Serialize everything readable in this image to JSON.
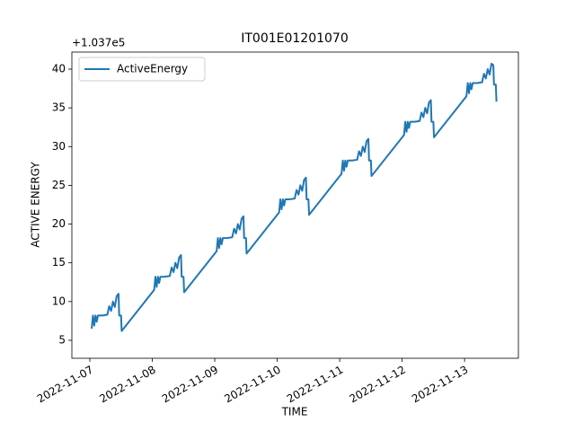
{
  "chart_data": {
    "type": "line",
    "title": "IT001E01201070",
    "offset_text": "+1.037e5",
    "x_label": "TIME",
    "y_label": "ACTIVE ENERGY",
    "legend": "upper left",
    "grid": false,
    "xlim": [
      "2022-11-06T17:06",
      "2022-11-13T20:40"
    ],
    "xticks": [
      "2022-11-07",
      "2022-11-08",
      "2022-11-09",
      "2022-11-10",
      "2022-11-11",
      "2022-11-12",
      "2022-11-13"
    ],
    "ylim": [
      2.68,
      42.2
    ],
    "yticks": [
      5,
      10,
      15,
      20,
      25,
      30,
      35,
      40
    ],
    "x": [
      "2022-11-07T00:43",
      "2022-11-07T01:12",
      "2022-11-07T01:41",
      "2022-11-07T02:10",
      "2022-11-07T02:38",
      "2022-11-07T03:07",
      "2022-11-07T04:48",
      "2022-11-07T06:43",
      "2022-11-07T07:26",
      "2022-11-07T08:10",
      "2022-11-07T08:53",
      "2022-11-07T09:36",
      "2022-11-07T10:19",
      "2022-11-07T11:02",
      "2022-11-07T11:17",
      "2022-11-07T12:00",
      "2022-11-07T12:14",
      "2022-11-08T00:43",
      "2022-11-08T01:12",
      "2022-11-08T01:41",
      "2022-11-08T02:10",
      "2022-11-08T02:38",
      "2022-11-08T03:07",
      "2022-11-08T04:48",
      "2022-11-08T06:43",
      "2022-11-08T07:26",
      "2022-11-08T08:10",
      "2022-11-08T08:53",
      "2022-11-08T09:36",
      "2022-11-08T10:19",
      "2022-11-08T11:02",
      "2022-11-08T11:17",
      "2022-11-08T12:00",
      "2022-11-08T12:14",
      "2022-11-09T00:43",
      "2022-11-09T01:12",
      "2022-11-09T01:41",
      "2022-11-09T02:10",
      "2022-11-09T02:38",
      "2022-11-09T03:07",
      "2022-11-09T04:48",
      "2022-11-09T06:43",
      "2022-11-09T07:26",
      "2022-11-09T08:10",
      "2022-11-09T08:53",
      "2022-11-09T09:36",
      "2022-11-09T10:19",
      "2022-11-09T11:02",
      "2022-11-09T11:17",
      "2022-11-09T12:00",
      "2022-11-09T12:14",
      "2022-11-10T00:43",
      "2022-11-10T01:12",
      "2022-11-10T01:41",
      "2022-11-10T02:10",
      "2022-11-10T02:38",
      "2022-11-10T03:07",
      "2022-11-10T04:48",
      "2022-11-10T06:43",
      "2022-11-10T07:26",
      "2022-11-10T08:10",
      "2022-11-10T08:53",
      "2022-11-10T09:36",
      "2022-11-10T10:19",
      "2022-11-10T11:02",
      "2022-11-10T11:17",
      "2022-11-10T12:00",
      "2022-11-10T12:14",
      "2022-11-11T00:43",
      "2022-11-11T01:12",
      "2022-11-11T01:41",
      "2022-11-11T02:10",
      "2022-11-11T02:38",
      "2022-11-11T03:07",
      "2022-11-11T04:48",
      "2022-11-11T06:43",
      "2022-11-11T07:26",
      "2022-11-11T08:10",
      "2022-11-11T08:53",
      "2022-11-11T09:36",
      "2022-11-11T10:19",
      "2022-11-11T11:02",
      "2022-11-11T11:17",
      "2022-11-11T12:00",
      "2022-11-11T12:14",
      "2022-11-12T00:43",
      "2022-11-12T01:12",
      "2022-11-12T01:41",
      "2022-11-12T02:10",
      "2022-11-12T02:38",
      "2022-11-12T03:07",
      "2022-11-12T04:48",
      "2022-11-12T06:43",
      "2022-11-12T07:26",
      "2022-11-12T08:10",
      "2022-11-12T08:53",
      "2022-11-12T09:36",
      "2022-11-12T10:19",
      "2022-11-12T11:02",
      "2022-11-12T11:17",
      "2022-11-12T12:00",
      "2022-11-12T12:14",
      "2022-11-13T00:43",
      "2022-11-13T01:12",
      "2022-11-13T01:41",
      "2022-11-13T02:10",
      "2022-11-13T02:38",
      "2022-11-13T03:07",
      "2022-11-13T04:48",
      "2022-11-13T06:43",
      "2022-11-13T07:26",
      "2022-11-13T08:10",
      "2022-11-13T08:53",
      "2022-11-13T09:36",
      "2022-11-13T10:19",
      "2022-11-13T11:02",
      "2022-11-13T11:17",
      "2022-11-13T12:00",
      "2022-11-13T12:14"
    ],
    "series": [
      {
        "name": "ActiveEnergy",
        "color": "#1f77b4",
        "values": [
          6.5,
          8.2,
          6.9,
          8.2,
          7.4,
          8.2,
          8.2,
          8.3,
          9.4,
          8.8,
          10.0,
          9.3,
          10.7,
          11.0,
          8.2,
          8.2,
          6.2,
          11.5,
          13.2,
          11.9,
          13.2,
          12.4,
          13.2,
          13.2,
          13.3,
          14.4,
          13.8,
          15.0,
          14.3,
          15.7,
          16.0,
          13.2,
          13.2,
          11.2,
          16.5,
          18.2,
          16.9,
          18.2,
          17.4,
          18.2,
          18.2,
          18.3,
          19.4,
          18.8,
          20.0,
          19.3,
          20.7,
          21.0,
          18.2,
          18.2,
          16.2,
          21.5,
          23.2,
          21.9,
          23.2,
          22.4,
          23.2,
          23.2,
          23.3,
          24.4,
          23.8,
          25.0,
          24.3,
          25.7,
          26.0,
          23.2,
          23.2,
          21.2,
          26.5,
          28.2,
          26.9,
          28.2,
          27.4,
          28.2,
          28.2,
          28.3,
          29.4,
          28.8,
          30.0,
          29.3,
          30.7,
          31.0,
          28.2,
          28.2,
          26.2,
          31.5,
          33.2,
          31.9,
          33.2,
          32.4,
          33.2,
          33.2,
          33.3,
          34.4,
          33.8,
          35.0,
          34.3,
          35.7,
          36.0,
          33.2,
          33.2,
          31.2,
          36.5,
          38.2,
          36.9,
          38.2,
          37.4,
          38.2,
          38.2,
          38.3,
          39.4,
          38.8,
          40.0,
          39.3,
          40.7,
          40.5,
          38.0,
          38.0,
          35.8
        ]
      }
    ]
  }
}
